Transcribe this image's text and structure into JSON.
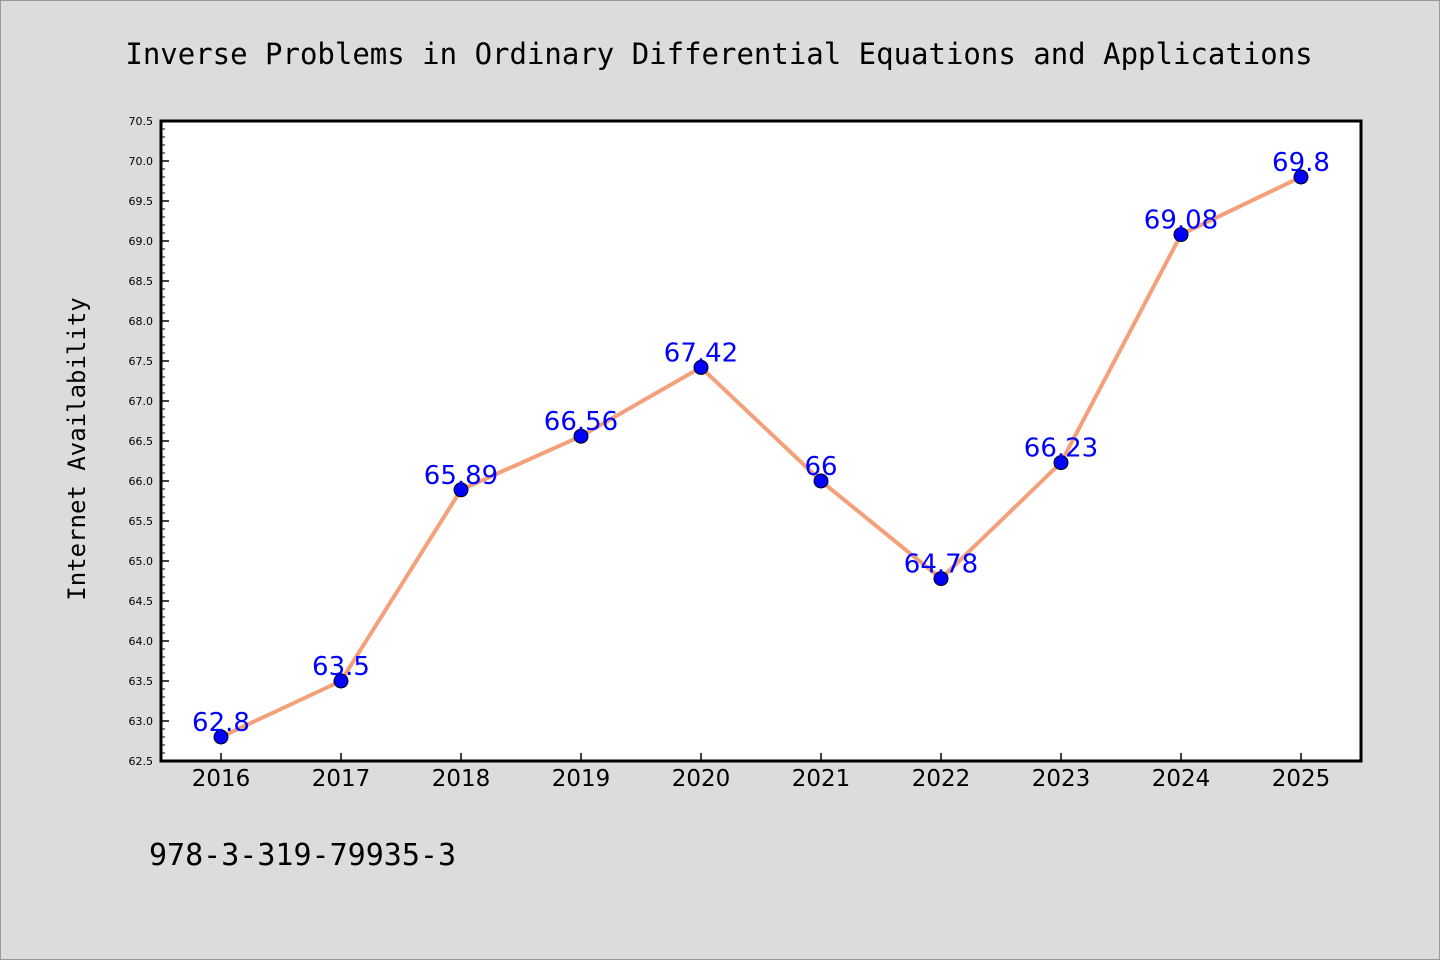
{
  "chart_data": {
    "type": "line",
    "title": "Inverse Problems in Ordinary Differential Equations and Applications",
    "xlabel": "",
    "ylabel": "Internet Availability",
    "categories": [
      "2016",
      "2017",
      "2018",
      "2019",
      "2020",
      "2021",
      "2022",
      "2023",
      "2024",
      "2025"
    ],
    "series": [
      {
        "values": [
          62.8,
          63.5,
          65.89,
          66.56,
          67.42,
          66,
          64.78,
          66.23,
          69.08,
          69.8
        ],
        "labels": [
          "62.8",
          "63.5",
          "65.89",
          "66.56",
          "67.42",
          "66",
          "64.78",
          "66.23",
          "69.08",
          "69.8"
        ]
      }
    ],
    "ylim": [
      62.5,
      70.5
    ],
    "yticks": [
      "62.5",
      "63.0",
      "63.5",
      "64.0",
      "64.5",
      "65.0",
      "65.5",
      "66.0",
      "66.5",
      "67.0",
      "67.5",
      "68.0",
      "68.5",
      "69.0",
      "69.5",
      "70.0",
      "70.5"
    ],
    "grid": false,
    "legend": "none",
    "annotation": "978-3-319-79935-3",
    "colors": {
      "line": "#f4a07a",
      "marker": "#0000ff",
      "data_label": "#0000ff",
      "figure_background": "#dcdcdc",
      "plot_background": "#ffffff"
    }
  }
}
